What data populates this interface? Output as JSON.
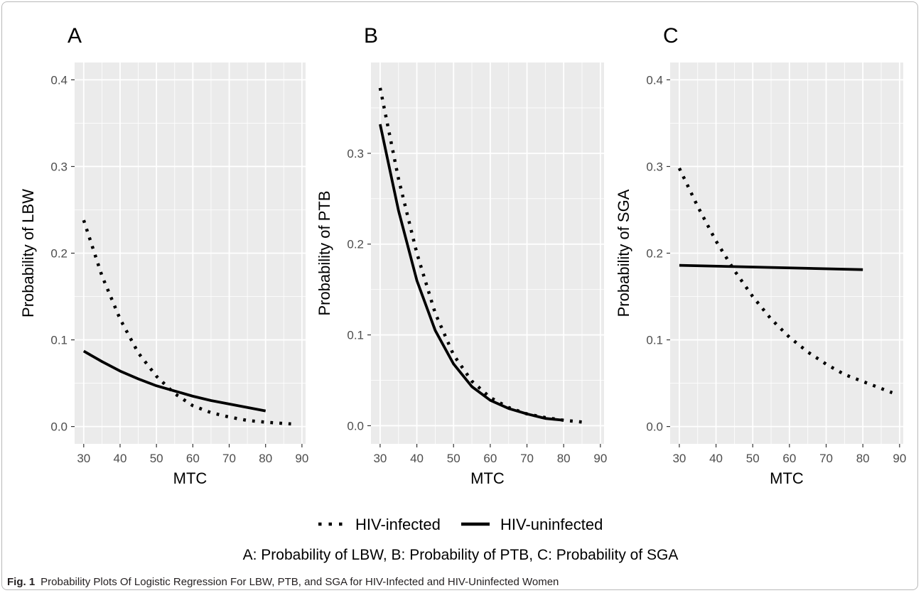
{
  "legend": {
    "placement": "bottom",
    "items": [
      {
        "label": "HIV-infected",
        "linetype": "dotted"
      },
      {
        "label": "HIV-uninfected",
        "linetype": "solid"
      }
    ]
  },
  "subcaption": "A: Probability of LBW, B: Probability of PTB, C: Probability of SGA",
  "caption": {
    "label": "Fig. 1",
    "text": "Probability Plots Of Logistic Regression For LBW, PTB, and SGA for HIV-Infected and HIV-Uninfected Women"
  },
  "colors": {
    "panel_background": "#ebebeb",
    "gridline": "#ffffff",
    "line": "#000000",
    "axis_text": "#4d4d4d"
  },
  "chart_data": [
    {
      "type": "line",
      "panel_label": "A",
      "xlabel": "MTC",
      "ylabel": "Probability of LBW",
      "xlim": [
        27.5,
        91
      ],
      "ylim": [
        -0.02,
        0.42
      ],
      "xticks": [
        30,
        40,
        50,
        60,
        70,
        80,
        90
      ],
      "yticks": [
        0.0,
        0.1,
        0.2,
        0.3,
        0.4
      ],
      "grid": true,
      "series": [
        {
          "name": "HIV-infected",
          "linetype": "dotted",
          "x": [
            30,
            35,
            40,
            45,
            50,
            55,
            60,
            65,
            70,
            75,
            80,
            87
          ],
          "y": [
            0.238,
            0.174,
            0.124,
            0.085,
            0.058,
            0.038,
            0.024,
            0.016,
            0.011,
            0.007,
            0.005,
            0.003
          ]
        },
        {
          "name": "HIV-uninfected",
          "linetype": "solid",
          "x": [
            30,
            35,
            40,
            45,
            50,
            55,
            60,
            65,
            70,
            75,
            80
          ],
          "y": [
            0.087,
            0.075,
            0.064,
            0.055,
            0.047,
            0.041,
            0.035,
            0.03,
            0.026,
            0.022,
            0.018
          ]
        }
      ]
    },
    {
      "type": "line",
      "panel_label": "B",
      "xlabel": "MTC",
      "ylabel": "Probability of PTB",
      "xlim": [
        27.5,
        91
      ],
      "ylim": [
        -0.02,
        0.4
      ],
      "xticks": [
        30,
        40,
        50,
        60,
        70,
        80,
        90
      ],
      "yticks": [
        0.0,
        0.1,
        0.2,
        0.3
      ],
      "grid": true,
      "series": [
        {
          "name": "HIV-infected",
          "linetype": "dotted",
          "x": [
            30,
            35,
            40,
            45,
            50,
            55,
            60,
            65,
            70,
            75,
            80,
            85
          ],
          "y": [
            0.372,
            0.272,
            0.19,
            0.124,
            0.078,
            0.049,
            0.031,
            0.02,
            0.013,
            0.009,
            0.006,
            0.004
          ]
        },
        {
          "name": "HIV-uninfected",
          "linetype": "solid",
          "x": [
            30,
            35,
            40,
            45,
            50,
            55,
            60,
            65,
            70,
            75,
            80
          ],
          "y": [
            0.332,
            0.237,
            0.16,
            0.105,
            0.068,
            0.043,
            0.028,
            0.019,
            0.013,
            0.008,
            0.006
          ]
        }
      ]
    },
    {
      "type": "line",
      "panel_label": "C",
      "xlabel": "MTC",
      "ylabel": "Probability of SGA",
      "xlim": [
        27.5,
        91
      ],
      "ylim": [
        -0.02,
        0.42
      ],
      "xticks": [
        30,
        40,
        50,
        60,
        70,
        80,
        90
      ],
      "yticks": [
        0.0,
        0.1,
        0.2,
        0.3,
        0.4
      ],
      "grid": true,
      "series": [
        {
          "name": "HIV-infected",
          "linetype": "dotted",
          "x": [
            30,
            35,
            40,
            45,
            50,
            55,
            60,
            65,
            70,
            75,
            80,
            88
          ],
          "y": [
            0.298,
            0.254,
            0.214,
            0.18,
            0.15,
            0.124,
            0.103,
            0.086,
            0.072,
            0.06,
            0.052,
            0.039
          ]
        },
        {
          "name": "HIV-uninfected",
          "linetype": "solid",
          "x": [
            30,
            80
          ],
          "y": [
            0.186,
            0.181
          ]
        }
      ]
    }
  ]
}
